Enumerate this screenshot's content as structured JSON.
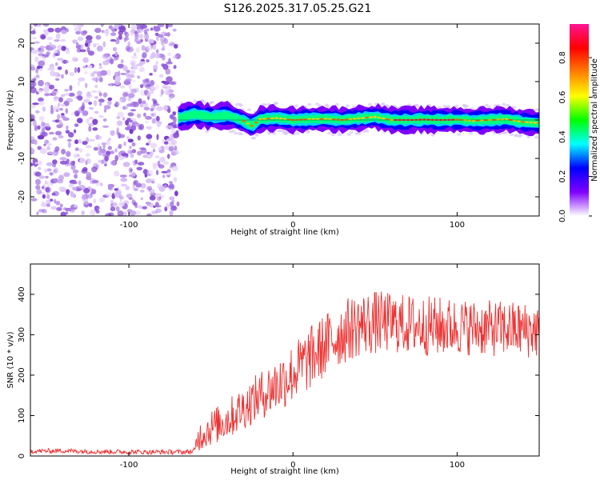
{
  "title": "S126.2025.317.05.25.G21",
  "colorbar_label": "Normalized spectral amplitude",
  "chart_data": [
    {
      "type": "heatmap",
      "xlabel": "Height of straight line (km)",
      "ylabel": "Frequency (Hz)",
      "xlim": [
        -160,
        150
      ],
      "ylim": [
        -25,
        25
      ],
      "xticks": [
        "-100",
        "0",
        "100"
      ],
      "xtick_values": [
        -100,
        0,
        100
      ],
      "yticks": [
        "-20",
        "-10",
        "0",
        "10",
        "20"
      ],
      "ytick_values": [
        -20,
        -10,
        0,
        10,
        20
      ],
      "noise_region_x": [
        -160,
        -70
      ],
      "signal_region_x": [
        -70,
        150
      ],
      "signal_trace": {
        "x": [
          -70,
          -60,
          -50,
          -40,
          -35,
          -30,
          -25,
          -20,
          -10,
          0,
          10,
          20,
          30,
          40,
          50,
          60,
          70,
          80,
          90,
          100,
          110,
          120,
          130,
          140,
          150
        ],
        "freq": [
          0.5,
          1.5,
          0.8,
          1.2,
          0.5,
          -0.3,
          -1.5,
          0.2,
          0.5,
          0.0,
          0.2,
          0.3,
          0.0,
          0.4,
          0.8,
          0.0,
          0.0,
          0.1,
          0.0,
          0.1,
          -0.2,
          0.0,
          0.2,
          -0.5,
          -0.8
        ]
      },
      "colorbar": {
        "label": "Normalized spectral amplitude",
        "range": [
          0.0,
          0.97
        ],
        "ticks": [
          "0.0",
          "0.2",
          "0.4",
          "0.6",
          "0.8"
        ],
        "tick_values": [
          0.0,
          0.2,
          0.4,
          0.6,
          0.8
        ],
        "colors": [
          "#ffffff",
          "#7f00ff",
          "#0000ff",
          "#00ffff",
          "#00ff00",
          "#ffff00",
          "#ff7f00",
          "#ff0000",
          "#ff1493"
        ]
      }
    },
    {
      "type": "line",
      "xlabel": "Height of straight line (km)",
      "ylabel": "SNR (10 * v/v)",
      "xlim": [
        -160,
        150
      ],
      "ylim": [
        0,
        475
      ],
      "xticks": [
        "-100",
        "0",
        "100"
      ],
      "xtick_values": [
        -100,
        0,
        100
      ],
      "yticks": [
        "0",
        "100",
        "200",
        "300",
        "400"
      ],
      "ytick_values": [
        0,
        100,
        200,
        300,
        400
      ],
      "color": "#ee3333",
      "series": [
        {
          "name": "SNR",
          "x": [
            -160,
            -140,
            -120,
            -100,
            -80,
            -65,
            -60,
            -58,
            -50,
            -40,
            -30,
            -20,
            -10,
            0,
            10,
            20,
            30,
            40,
            50,
            60,
            70,
            80,
            90,
            100,
            110,
            120,
            130,
            140,
            150
          ],
          "y": [
            12,
            13,
            11,
            10,
            10,
            10,
            12,
            45,
            70,
            90,
            120,
            150,
            175,
            205,
            240,
            275,
            305,
            325,
            330,
            330,
            325,
            322,
            320,
            320,
            318,
            315,
            315,
            312,
            310
          ],
          "spread": [
            6,
            6,
            6,
            6,
            6,
            6,
            8,
            35,
            45,
            50,
            55,
            60,
            70,
            75,
            80,
            80,
            80,
            80,
            80,
            75,
            75,
            75,
            75,
            70,
            70,
            70,
            70,
            70,
            70
          ]
        }
      ]
    }
  ]
}
